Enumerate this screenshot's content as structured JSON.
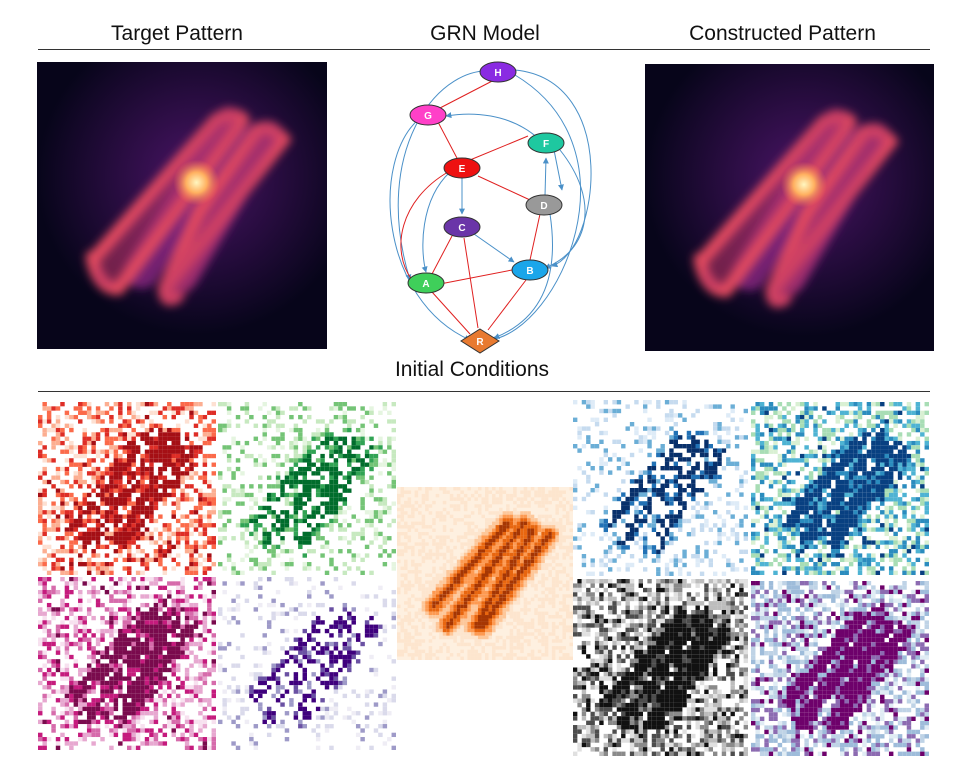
{
  "headings": {
    "target": "Target Pattern",
    "grn": "GRN Model",
    "constructed": "Constructed Pattern",
    "initial": "Initial Conditions"
  },
  "grn": {
    "nodes": [
      {
        "id": "H",
        "color": "#8a2be2"
      },
      {
        "id": "G",
        "color": "#ff40c8"
      },
      {
        "id": "F",
        "color": "#1ec8a0"
      },
      {
        "id": "E",
        "color": "#ee1111"
      },
      {
        "id": "D",
        "color": "#999999"
      },
      {
        "id": "C",
        "color": "#6a35a8"
      },
      {
        "id": "B",
        "color": "#1aa6ea"
      },
      {
        "id": "A",
        "color": "#3fcf5a"
      },
      {
        "id": "R",
        "color": "#e87a30"
      }
    ],
    "edge_colors": {
      "activation": "#4a90c8",
      "repression": "#e02020"
    }
  },
  "colors": {
    "magma": [
      "#05030f",
      "#3b0f70",
      "#8c2981",
      "#de4968",
      "#fe9f6d",
      "#fcfdbf"
    ],
    "initial_condition_colormaps": [
      "reds",
      "greens",
      "pinks",
      "purples",
      "oranges",
      "blues",
      "teal",
      "greys",
      "bupu"
    ]
  }
}
